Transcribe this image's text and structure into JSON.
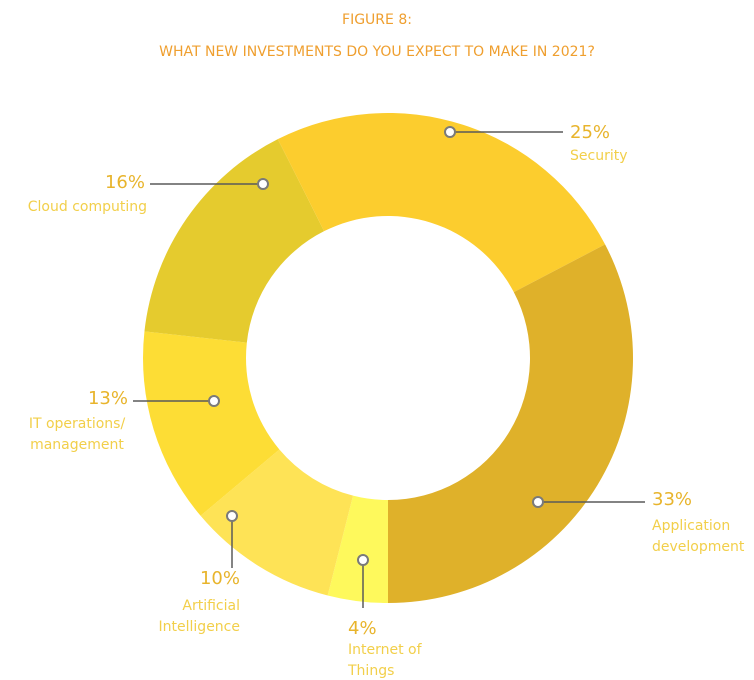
{
  "chart_data": {
    "type": "donut",
    "title": "FIGURE 8:",
    "subtitle": "WHAT NEW INVESTMENTS DO YOU EXPECT TO MAKE IN 2021?",
    "categories": [
      "Internet of Things",
      "Artificial Intelligence",
      "IT operations/ management",
      "Cloud computing",
      "Security",
      "Application development"
    ],
    "values": [
      4,
      10,
      13,
      16,
      25,
      33
    ],
    "value_labels": [
      "4%",
      "10%",
      "13%",
      "16%",
      "25%",
      "33%"
    ],
    "colors": [
      "#fef95c",
      "#fee356",
      "#fddd35",
      "#e5cb2e",
      "#fccd2e",
      "#dfb12a"
    ]
  }
}
